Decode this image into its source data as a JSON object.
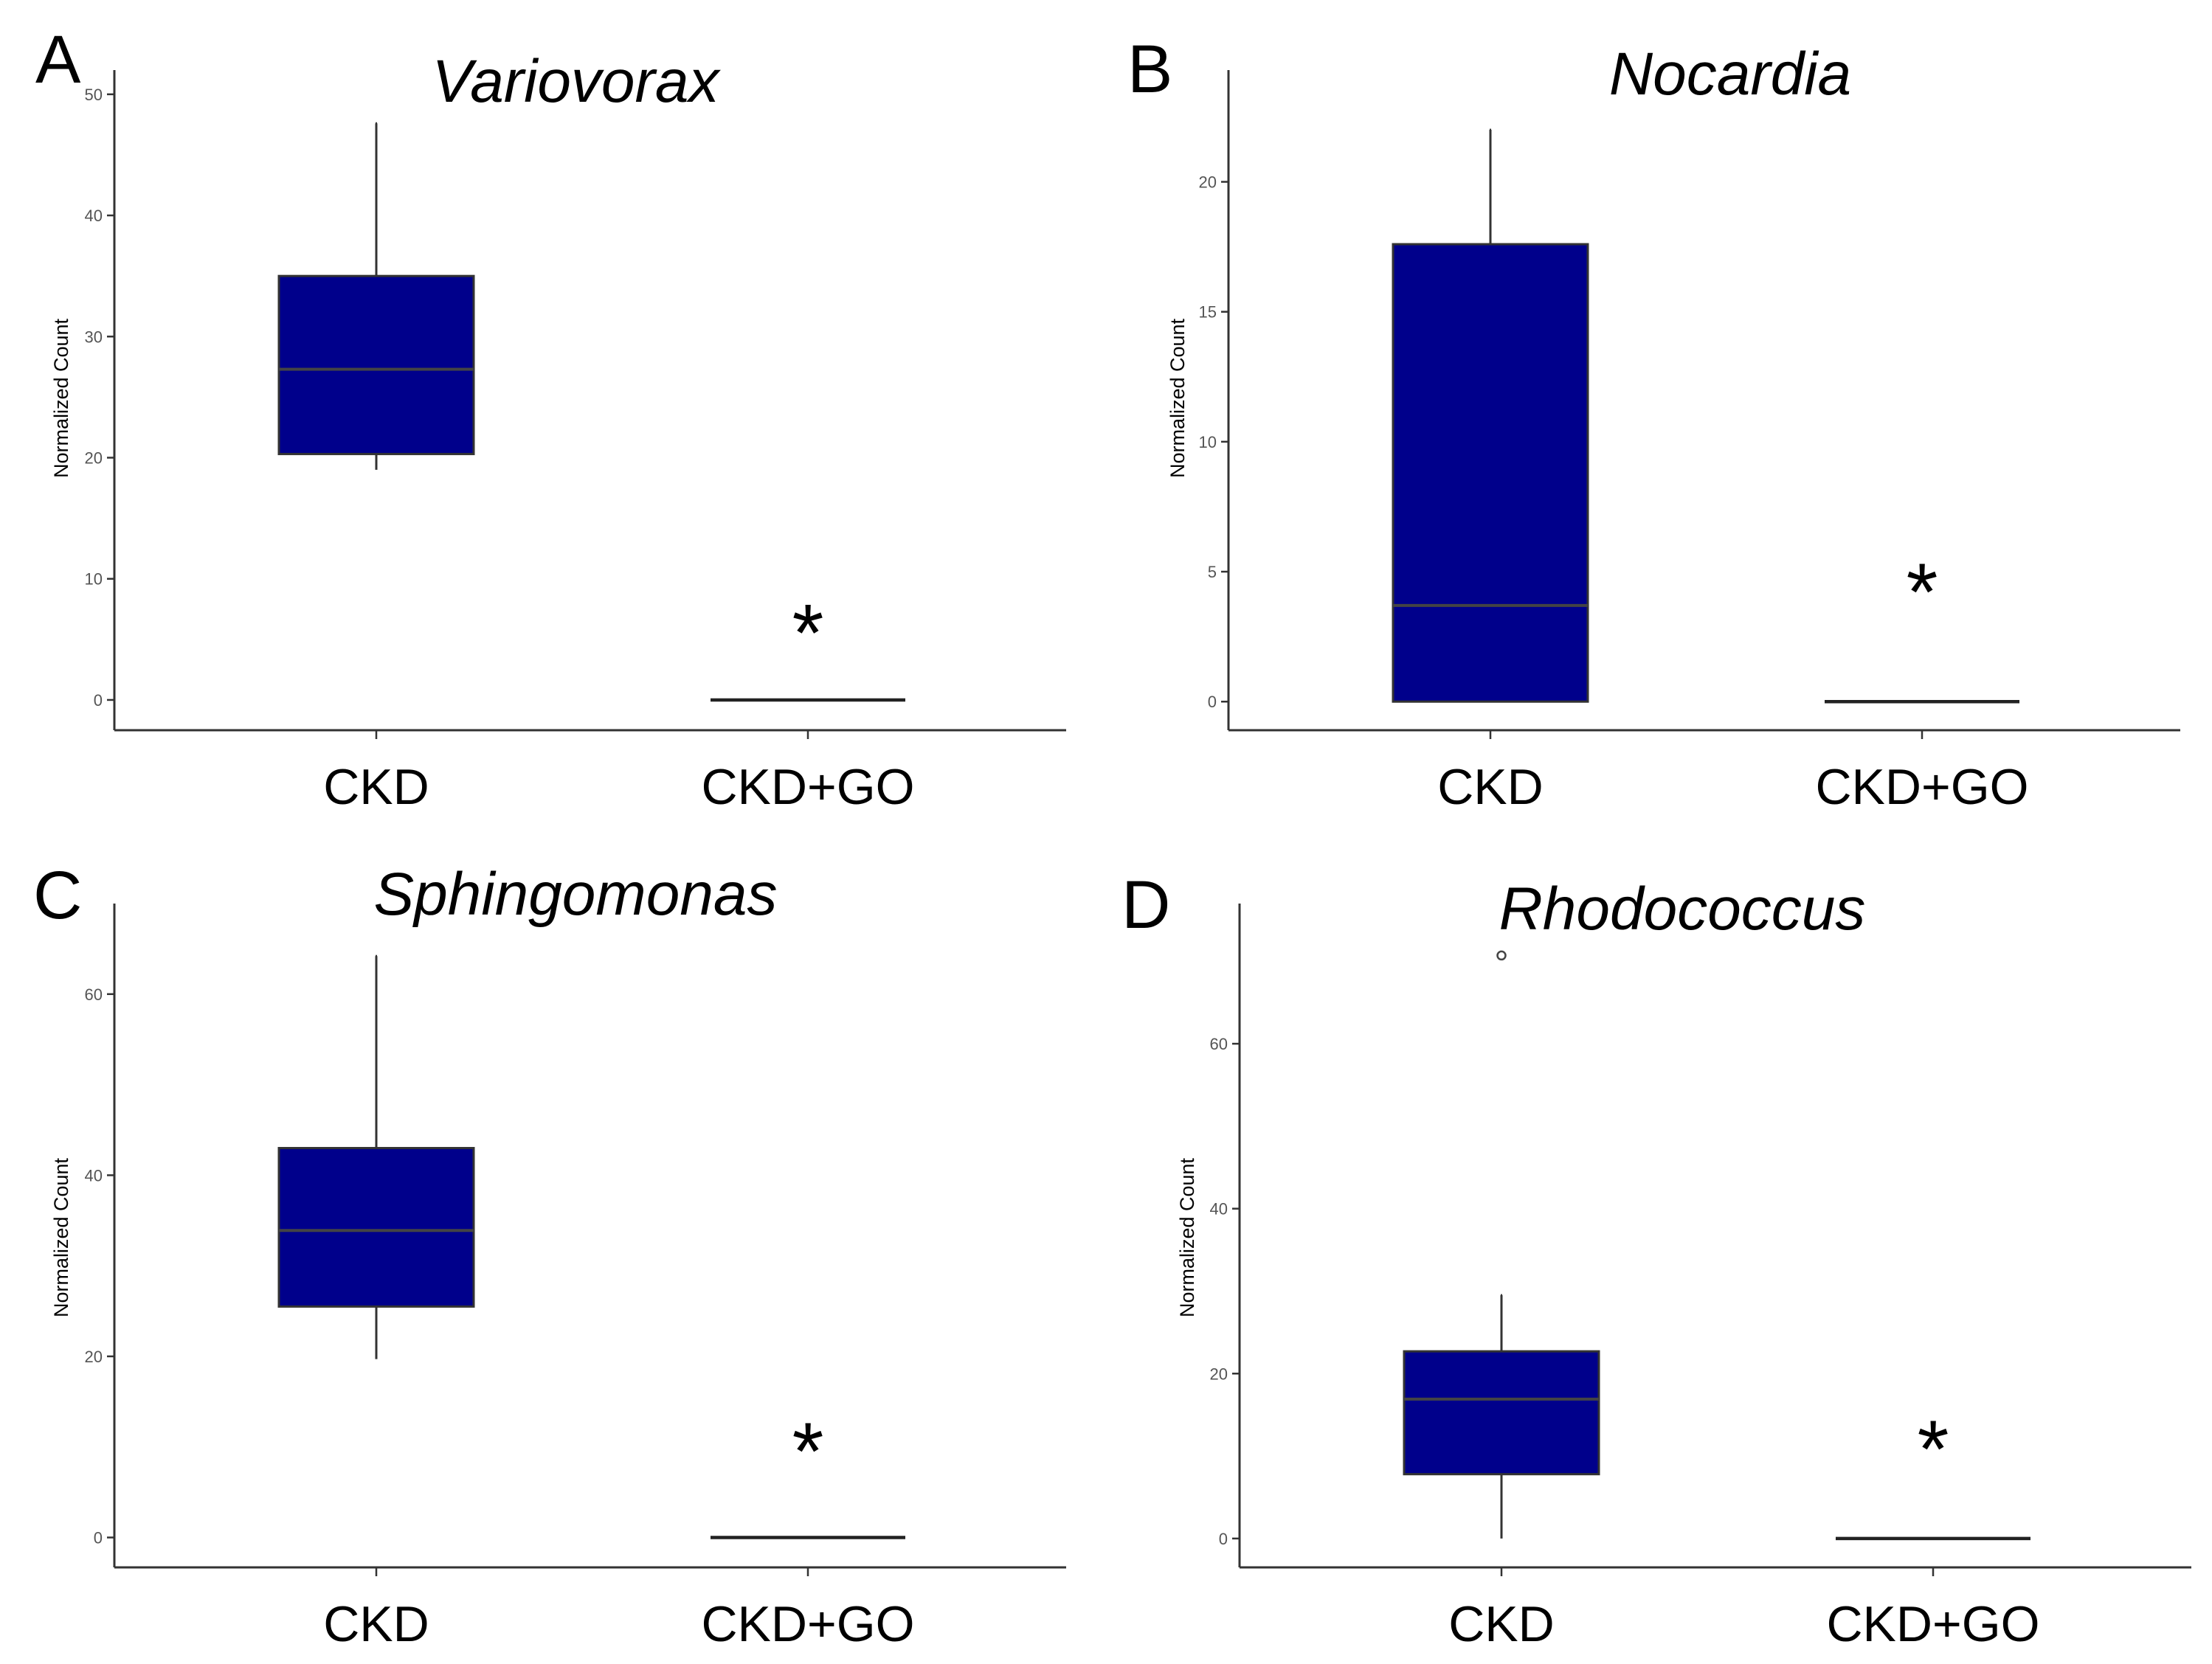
{
  "chart_data": [
    {
      "type": "box",
      "panel_label": "A",
      "title": "Variovorax",
      "ylabel": "Normalized Count",
      "ylim": [
        -2.5,
        52
      ],
      "yticks": [
        0,
        10,
        20,
        30,
        40,
        50
      ],
      "categories": [
        "CKD",
        "CKD+GO"
      ],
      "fill_color": "#00008B",
      "boxes": [
        {
          "category": "CKD",
          "whisker_low": 19,
          "q1": 20.3,
          "median": 27.3,
          "q3": 35,
          "whisker_high": 47.6,
          "outliers": []
        },
        {
          "category": "CKD+GO",
          "whisker_low": 0,
          "q1": 0,
          "median": 0,
          "q3": 0,
          "whisker_high": 0,
          "outliers": []
        }
      ],
      "annotations": [
        {
          "category": "CKD+GO",
          "text": "*",
          "y": 7
        }
      ]
    },
    {
      "type": "box",
      "panel_label": "B",
      "title": "Nocardia",
      "ylabel": "Normalized Count",
      "ylim": [
        -1.1,
        24.3
      ],
      "yticks": [
        0,
        5,
        10,
        15,
        20
      ],
      "categories": [
        "CKD",
        "CKD+GO"
      ],
      "fill_color": "#00008B",
      "boxes": [
        {
          "category": "CKD",
          "whisker_low": 0,
          "q1": 0,
          "median": 3.7,
          "q3": 17.6,
          "whisker_high": 22,
          "outliers": []
        },
        {
          "category": "CKD+GO",
          "whisker_low": 0,
          "q1": 0,
          "median": 0,
          "q3": 0,
          "whisker_high": 0,
          "outliers": []
        }
      ],
      "annotations": [
        {
          "category": "CKD+GO",
          "text": "*",
          "y": 4.9
        }
      ]
    },
    {
      "type": "box",
      "panel_label": "C",
      "title": "Sphingomonas",
      "ylabel": "Normalized Count",
      "ylim": [
        -3.3,
        70
      ],
      "yticks": [
        0,
        20,
        40,
        60
      ],
      "categories": [
        "CKD",
        "CKD+GO"
      ],
      "fill_color": "#00008B",
      "boxes": [
        {
          "category": "CKD",
          "whisker_low": 19.7,
          "q1": 25.5,
          "median": 33.9,
          "q3": 43,
          "whisker_high": 64.2,
          "outliers": []
        },
        {
          "category": "CKD+GO",
          "whisker_low": 0,
          "q1": 0,
          "median": 0,
          "q3": 0,
          "whisker_high": 0,
          "outliers": []
        }
      ],
      "annotations": [
        {
          "category": "CKD+GO",
          "text": "*",
          "y": 11.5
        }
      ]
    },
    {
      "type": "box",
      "panel_label": "D",
      "title": "Rhodococcus",
      "ylabel": "Normalized Count",
      "ylim": [
        -3.5,
        77
      ],
      "yticks": [
        0,
        20,
        40,
        60
      ],
      "categories": [
        "CKD",
        "CKD+GO"
      ],
      "fill_color": "#00008B",
      "boxes": [
        {
          "category": "CKD",
          "whisker_low": 0,
          "q1": 7.8,
          "median": 16.9,
          "q3": 22.7,
          "whisker_high": 29.5,
          "outliers": [
            70.7
          ]
        },
        {
          "category": "CKD+GO",
          "whisker_low": 0,
          "q1": 0,
          "median": 0,
          "q3": 0,
          "whisker_high": 0,
          "outliers": []
        }
      ],
      "annotations": [
        {
          "category": "CKD+GO",
          "text": "*",
          "y": 13
        }
      ]
    }
  ]
}
